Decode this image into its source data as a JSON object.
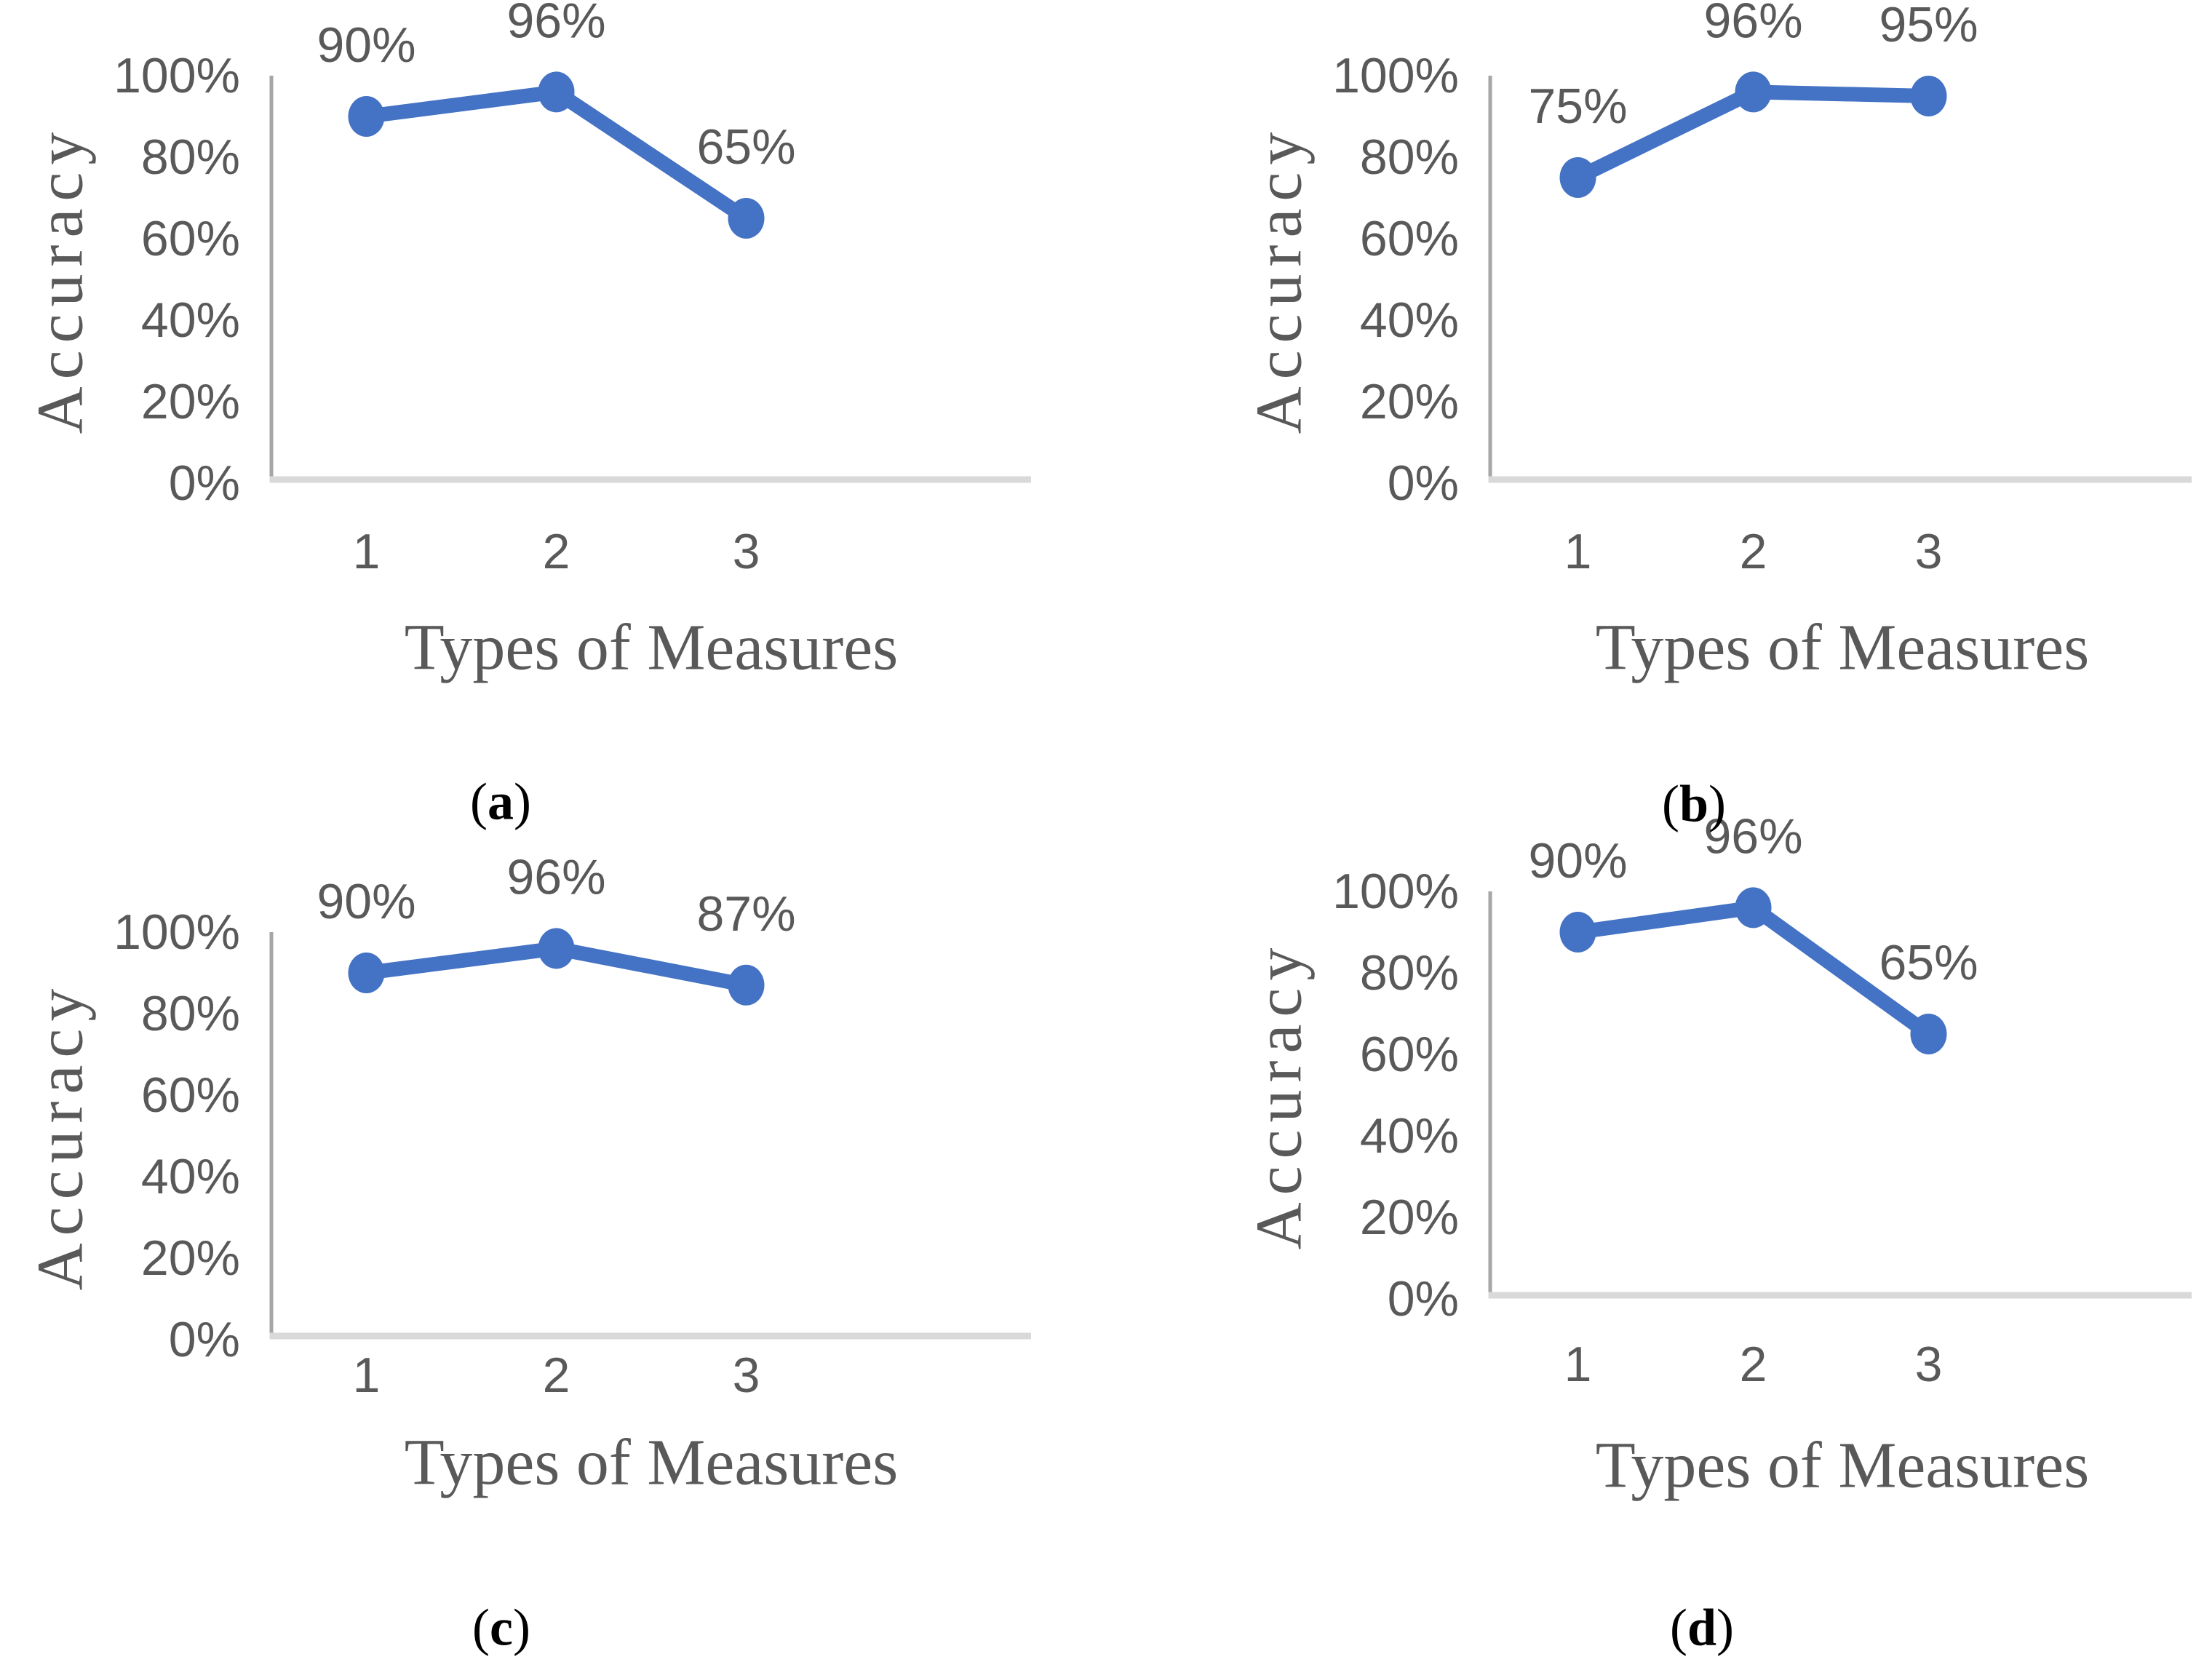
{
  "chart_data": [
    {
      "id": "a",
      "type": "line",
      "xlabel": "Types of Measures",
      "ylabel": "Accuracy",
      "categories": [
        "1",
        "2",
        "3"
      ],
      "values": [
        90,
        96,
        65
      ],
      "data_labels": [
        "90%",
        "96%",
        "65%"
      ],
      "yticks": [
        "100%",
        "80%",
        "60%",
        "40%",
        "20%",
        "0%"
      ],
      "ytick_values": [
        100,
        80,
        60,
        40,
        20,
        0
      ],
      "ylim": [
        0,
        100
      ],
      "grid": false,
      "legend": false,
      "line_color": "#4472C4",
      "caption_open": "(",
      "caption_letter": "a",
      "caption_close": ")"
    },
    {
      "id": "b",
      "type": "line",
      "xlabel": "Types of Measures",
      "ylabel": "Accuracy",
      "categories": [
        "1",
        "2",
        "3"
      ],
      "values": [
        75,
        96,
        95
      ],
      "data_labels": [
        "75%",
        "96%",
        "95%"
      ],
      "yticks": [
        "100%",
        "80%",
        "60%",
        "40%",
        "20%",
        "0%"
      ],
      "ytick_values": [
        100,
        80,
        60,
        40,
        20,
        0
      ],
      "ylim": [
        0,
        100
      ],
      "grid": false,
      "legend": false,
      "line_color": "#4472C4",
      "caption_open": "(",
      "caption_letter": "b",
      "caption_close": ")"
    },
    {
      "id": "c",
      "type": "line",
      "xlabel": "Types of Measures",
      "ylabel": "Accuracy",
      "categories": [
        "1",
        "2",
        "3"
      ],
      "values": [
        90,
        96,
        87
      ],
      "data_labels": [
        "90%",
        "96%",
        "87%"
      ],
      "yticks": [
        "100%",
        "80%",
        "60%",
        "40%",
        "20%",
        "0%"
      ],
      "ytick_values": [
        100,
        80,
        60,
        40,
        20,
        0
      ],
      "ylim": [
        0,
        100
      ],
      "grid": false,
      "legend": false,
      "line_color": "#4472C4",
      "caption_open": "(",
      "caption_letter": "c",
      "caption_close": ")"
    },
    {
      "id": "d",
      "type": "line",
      "xlabel": "Types of Measures",
      "ylabel": "Accuracy",
      "categories": [
        "1",
        "2",
        "3"
      ],
      "values": [
        90,
        96,
        65
      ],
      "data_labels": [
        "90%",
        "96%",
        "65%"
      ],
      "yticks": [
        "100%",
        "80%",
        "60%",
        "40%",
        "20%",
        "0%"
      ],
      "ytick_values": [
        100,
        80,
        60,
        40,
        20,
        0
      ],
      "ylim": [
        0,
        100
      ],
      "grid": false,
      "legend": false,
      "line_color": "#4472C4",
      "caption_open": "(",
      "caption_letter": "d",
      "caption_close": ")"
    }
  ],
  "colors": {
    "line": "#4472C4",
    "x_axis_line": "#D9D9D9",
    "y_axis_line": "#A6A6A6",
    "tick_text": "#595959",
    "axis_title_text": "#595959",
    "caption_text": "#000000"
  }
}
